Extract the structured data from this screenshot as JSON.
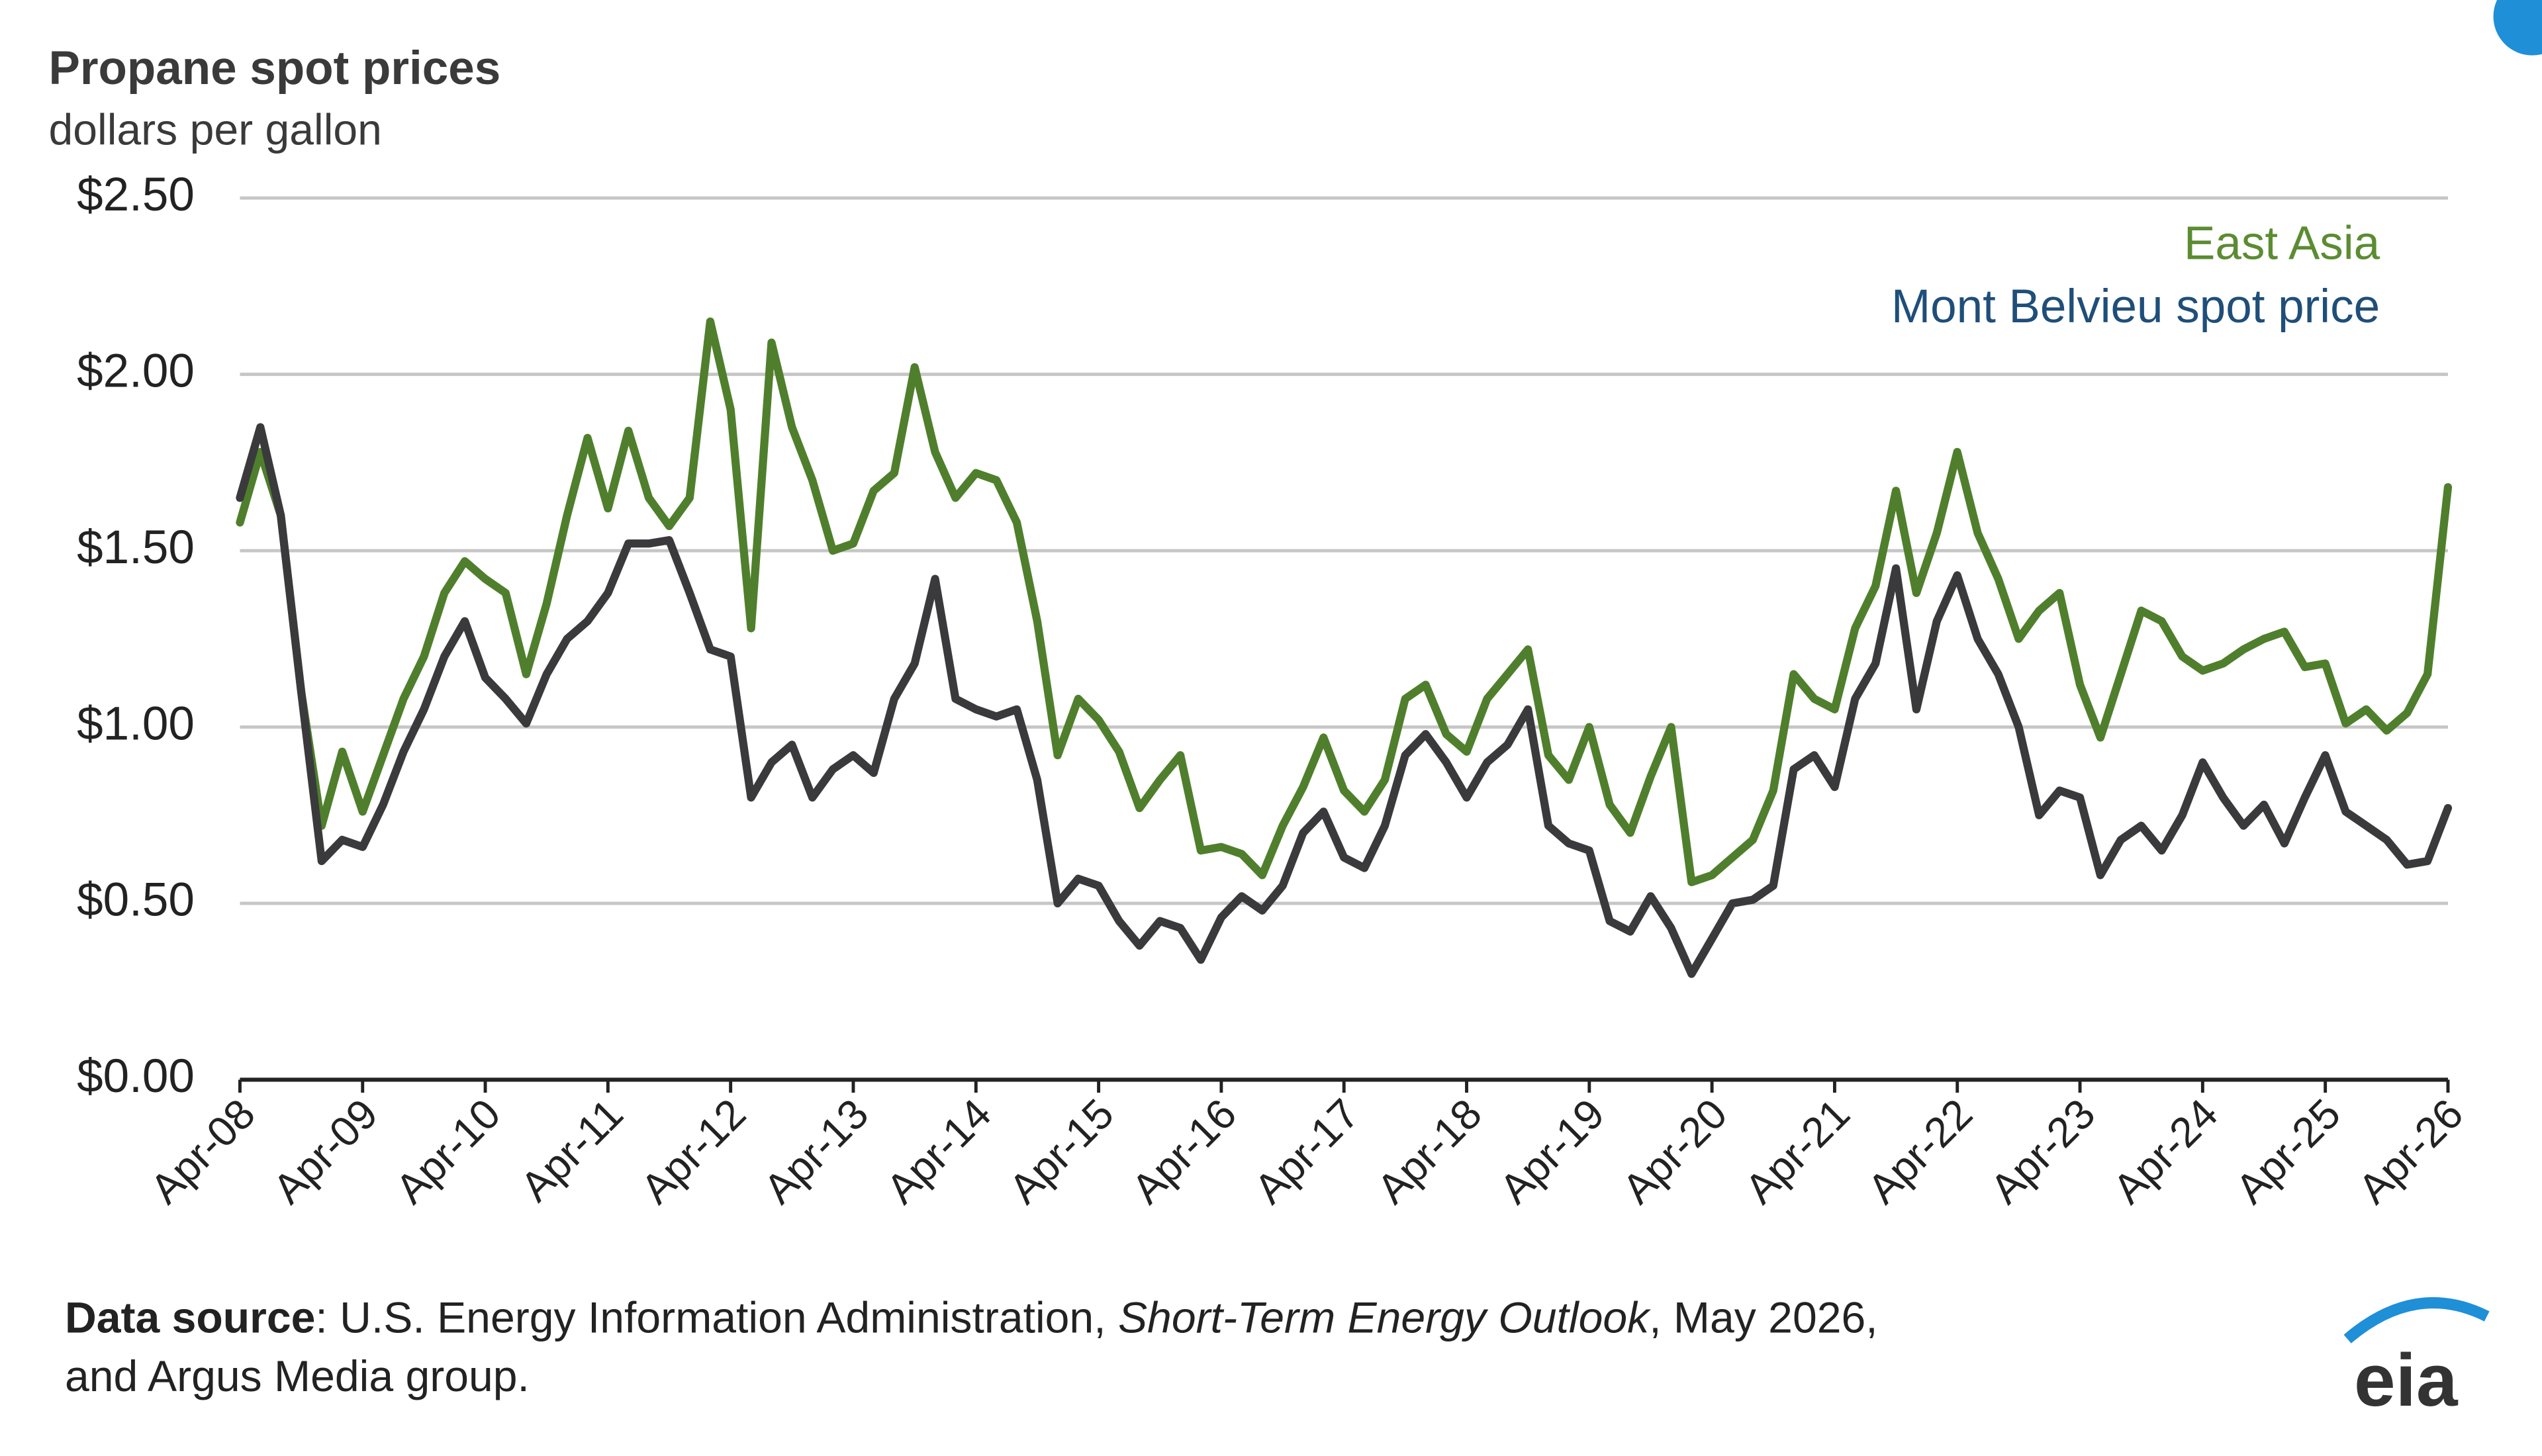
{
  "chart_data": {
    "type": "line",
    "title": "Propane spot prices",
    "subtitle": "dollars per gallon",
    "x": [
      "2008-04",
      "2008-06",
      "2008-08",
      "2008-10",
      "2008-12",
      "2009-02",
      "2009-04",
      "2009-06",
      "2009-08",
      "2009-10",
      "2009-12",
      "2010-02",
      "2010-04",
      "2010-06",
      "2010-08",
      "2010-10",
      "2010-12",
      "2011-02",
      "2011-04",
      "2011-06",
      "2011-08",
      "2011-10",
      "2011-12",
      "2012-02",
      "2012-04",
      "2012-06",
      "2012-08",
      "2012-10",
      "2012-12",
      "2013-02",
      "2013-04",
      "2013-06",
      "2013-08",
      "2013-10",
      "2013-12",
      "2014-02",
      "2014-04",
      "2014-06",
      "2014-08",
      "2014-10",
      "2014-12",
      "2015-02",
      "2015-04",
      "2015-06",
      "2015-08",
      "2015-10",
      "2015-12",
      "2016-02",
      "2016-04",
      "2016-06",
      "2016-08",
      "2016-10",
      "2016-12",
      "2017-02",
      "2017-04",
      "2017-06",
      "2017-08",
      "2017-10",
      "2017-12",
      "2018-02",
      "2018-04",
      "2018-06",
      "2018-08",
      "2018-10",
      "2018-12",
      "2019-02",
      "2019-04",
      "2019-06",
      "2019-08",
      "2019-10",
      "2019-12",
      "2020-02",
      "2020-04",
      "2020-06",
      "2020-08",
      "2020-10",
      "2020-12",
      "2021-02",
      "2021-04",
      "2021-06",
      "2021-08",
      "2021-10",
      "2021-12",
      "2022-02",
      "2022-04",
      "2022-06",
      "2022-08",
      "2022-10",
      "2022-12",
      "2023-02",
      "2023-04",
      "2023-06",
      "2023-08",
      "2023-10",
      "2023-12",
      "2024-02",
      "2024-04",
      "2024-06",
      "2024-08",
      "2024-10",
      "2024-12",
      "2025-02",
      "2025-04",
      "2025-06",
      "2025-08",
      "2025-10",
      "2025-12",
      "2026-02",
      "2026-04"
    ],
    "series": [
      {
        "name": "East Asia",
        "color": "#4f7f2c",
        "label_color": "#5b8c32",
        "values": [
          1.58,
          1.78,
          1.6,
          1.1,
          0.72,
          0.93,
          0.76,
          0.92,
          1.08,
          1.2,
          1.38,
          1.47,
          1.42,
          1.38,
          1.15,
          1.35,
          1.6,
          1.82,
          1.62,
          1.84,
          1.65,
          1.57,
          1.65,
          2.15,
          1.9,
          1.28,
          2.09,
          1.85,
          1.7,
          1.5,
          1.52,
          1.67,
          1.72,
          2.02,
          1.78,
          1.65,
          1.72,
          1.7,
          1.58,
          1.3,
          0.92,
          1.08,
          1.02,
          0.93,
          0.77,
          0.85,
          0.92,
          0.65,
          0.66,
          0.64,
          0.58,
          0.72,
          0.83,
          0.97,
          0.82,
          0.76,
          0.85,
          1.08,
          1.12,
          0.98,
          0.93,
          1.08,
          1.15,
          1.22,
          0.92,
          0.85,
          1.0,
          0.78,
          0.7,
          0.86,
          1.0,
          0.56,
          0.58,
          0.63,
          0.68,
          0.82,
          1.15,
          1.08,
          1.05,
          1.28,
          1.4,
          1.67,
          1.38,
          1.55,
          1.78,
          1.55,
          1.42,
          1.25,
          1.33,
          1.38,
          1.12,
          0.97,
          1.15,
          1.33,
          1.3,
          1.2,
          1.16,
          1.18,
          1.22,
          1.25,
          1.27,
          1.17,
          1.18,
          1.01,
          1.05,
          0.99,
          1.04,
          1.15,
          1.68
        ]
      },
      {
        "name": "Mont Belvieu spot price",
        "color": "#3a3a3c",
        "label_color": "#1f4e79",
        "values": [
          1.65,
          1.85,
          1.6,
          1.1,
          0.62,
          0.68,
          0.66,
          0.78,
          0.93,
          1.05,
          1.2,
          1.3,
          1.14,
          1.08,
          1.01,
          1.15,
          1.25,
          1.3,
          1.38,
          1.52,
          1.52,
          1.53,
          1.38,
          1.22,
          1.2,
          0.8,
          0.9,
          0.95,
          0.8,
          0.88,
          0.92,
          0.87,
          1.08,
          1.18,
          1.42,
          1.08,
          1.05,
          1.03,
          1.05,
          0.85,
          0.5,
          0.57,
          0.55,
          0.45,
          0.38,
          0.45,
          0.43,
          0.34,
          0.46,
          0.52,
          0.48,
          0.55,
          0.7,
          0.76,
          0.63,
          0.6,
          0.72,
          0.92,
          0.98,
          0.9,
          0.8,
          0.9,
          0.95,
          1.05,
          0.72,
          0.67,
          0.65,
          0.45,
          0.42,
          0.52,
          0.43,
          0.3,
          0.4,
          0.5,
          0.51,
          0.55,
          0.88,
          0.92,
          0.83,
          1.08,
          1.18,
          1.45,
          1.05,
          1.3,
          1.43,
          1.25,
          1.15,
          1.0,
          0.75,
          0.82,
          0.8,
          0.58,
          0.68,
          0.72,
          0.65,
          0.75,
          0.9,
          0.8,
          0.72,
          0.78,
          0.67,
          0.8,
          0.92,
          0.76,
          0.72,
          0.68,
          0.61,
          0.62,
          0.77
        ]
      }
    ],
    "xlim": [
      "2008-04",
      "2026-04"
    ],
    "xticks": [
      {
        "value": "2008-04",
        "label": "Apr-08"
      },
      {
        "value": "2009-04",
        "label": "Apr-09"
      },
      {
        "value": "2010-04",
        "label": "Apr-10"
      },
      {
        "value": "2011-04",
        "label": "Apr-11"
      },
      {
        "value": "2012-04",
        "label": "Apr-12"
      },
      {
        "value": "2013-04",
        "label": "Apr-13"
      },
      {
        "value": "2014-04",
        "label": "Apr-14"
      },
      {
        "value": "2015-04",
        "label": "Apr-15"
      },
      {
        "value": "2016-04",
        "label": "Apr-16"
      },
      {
        "value": "2017-04",
        "label": "Apr-17"
      },
      {
        "value": "2018-04",
        "label": "Apr-18"
      },
      {
        "value": "2019-04",
        "label": "Apr-19"
      },
      {
        "value": "2020-04",
        "label": "Apr-20"
      },
      {
        "value": "2021-04",
        "label": "Apr-21"
      },
      {
        "value": "2022-04",
        "label": "Apr-22"
      },
      {
        "value": "2023-04",
        "label": "Apr-23"
      },
      {
        "value": "2024-04",
        "label": "Apr-24"
      },
      {
        "value": "2025-04",
        "label": "Apr-25"
      },
      {
        "value": "2026-04",
        "label": "Apr-26"
      }
    ],
    "ylim": [
      0,
      2.5
    ],
    "yticks": [
      {
        "value": 0,
        "label": "$0.00"
      },
      {
        "value": 0.5,
        "label": "$0.50"
      },
      {
        "value": 1,
        "label": "$1.00"
      },
      {
        "value": 1.5,
        "label": "$1.50"
      },
      {
        "value": 2,
        "label": "$2.00"
      },
      {
        "value": 2.5,
        "label": "$2.50"
      }
    ],
    "grid": true,
    "legend": "top-right",
    "source": [
      "Data source",
      ": U.S. Energy Information Administration, ",
      "Short-Term Energy Outlook",
      ", May 2026,",
      "and Argus Media group."
    ],
    "logo": "eia"
  }
}
